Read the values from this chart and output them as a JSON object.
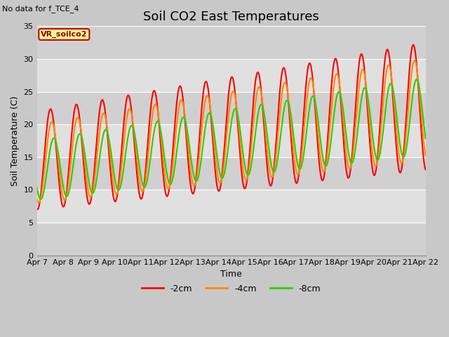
{
  "title": "Soil CO2 East Temperatures",
  "subtitle": "No data for f_TCE_4",
  "ylabel": "Soil Temperature (C)",
  "xlabel": "Time",
  "ylim": [
    0,
    35
  ],
  "xtick_labels": [
    "Apr 7",
    "Apr 8",
    "Apr 9",
    "Apr 10",
    "Apr 11",
    "Apr 12",
    "Apr 13",
    "Apr 14",
    "Apr 15",
    "Apr 16",
    "Apr 17",
    "Apr 18",
    "Apr 19",
    "Apr 20",
    "Apr 21",
    "Apr 22"
  ],
  "legend_labels": [
    "-2cm",
    "-4cm",
    "-8cm"
  ],
  "legend_colors": [
    "#ff0000",
    "#ff8800",
    "#33cc00"
  ],
  "box_label": "VR_soilco2",
  "box_facecolor": "#ffff99",
  "box_edgecolor": "#cc0000",
  "plot_bg_color": "#e8e8e8",
  "line_width": 1.5,
  "title_fontsize": 13,
  "axis_fontsize": 9,
  "tick_fontsize": 8,
  "band_colors": [
    "#d8d8d8",
    "#e8e8e8"
  ],
  "band_ranges": [
    [
      0,
      5
    ],
    [
      5,
      10
    ],
    [
      10,
      15
    ],
    [
      15,
      20
    ],
    [
      20,
      25
    ],
    [
      25,
      30
    ],
    [
      30,
      35
    ]
  ]
}
